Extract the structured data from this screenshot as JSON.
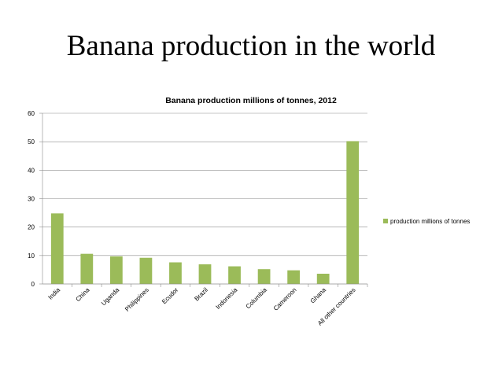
{
  "slide": {
    "title": "Banana production in the world"
  },
  "chart_data": {
    "type": "bar",
    "title": "Banana production millions of tonnes, 2012",
    "xlabel": "",
    "ylabel": "",
    "ylim": [
      0,
      60
    ],
    "yticks": [
      0,
      10,
      20,
      30,
      40,
      50,
      60
    ],
    "grid": true,
    "legend_position": "right",
    "categories": [
      "India",
      "China",
      "Uganda",
      "Philippines",
      "Ecudor",
      "Brazil",
      "Indonesia",
      "Columbia",
      "Cameroon",
      "Ghana",
      "All other countries"
    ],
    "series": [
      {
        "name": "production millions of tonnes",
        "color": "#9bbb59",
        "values": [
          24.8,
          10.6,
          9.7,
          9.2,
          7.6,
          6.9,
          6.2,
          5.2,
          4.8,
          3.6,
          50.2
        ]
      }
    ]
  }
}
